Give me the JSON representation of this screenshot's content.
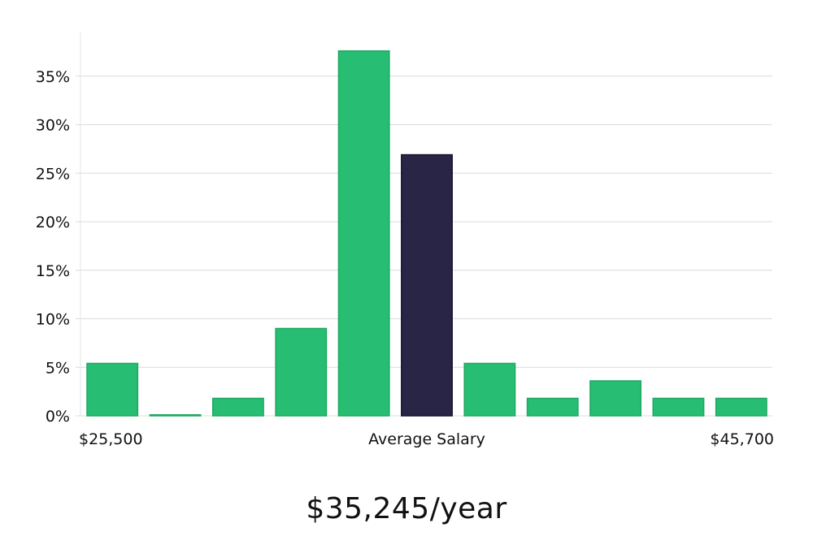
{
  "chart_data": {
    "type": "bar",
    "values": [
      5.4,
      0.1,
      1.8,
      9.0,
      37.6,
      26.9,
      5.4,
      1.8,
      3.6,
      1.8,
      1.8
    ],
    "highlight_index": 5,
    "ylim": [
      0,
      39.5
    ],
    "yticks": [
      0,
      5,
      10,
      15,
      20,
      25,
      30,
      35
    ],
    "ytick_format": "%",
    "x_labels": {
      "left": "$25,500",
      "center": "Average Salary",
      "right": "$45,700"
    },
    "grid": true,
    "colors": {
      "bar": "#27bd73",
      "bar_edge": "#1fa862",
      "highlight": "#282546",
      "highlight_edge": "#15132e",
      "grid": "#dcdcdc",
      "axis": "#e4e4e4"
    }
  },
  "headline": "$35,245/year"
}
